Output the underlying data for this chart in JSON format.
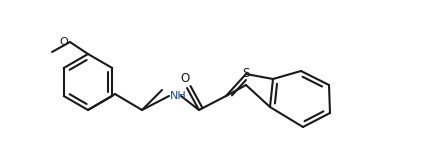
{
  "line_color": "#1a1a1a",
  "nh_color": "#1a4a8a",
  "s_color": "#1a1a1a",
  "bg_color": "#ffffff",
  "line_width": 1.5,
  "figsize": [
    4.37,
    1.51
  ],
  "dpi": 100,
  "label_nh": "NH",
  "label_o": "O",
  "label_s": "S",
  "label_meo": "O"
}
